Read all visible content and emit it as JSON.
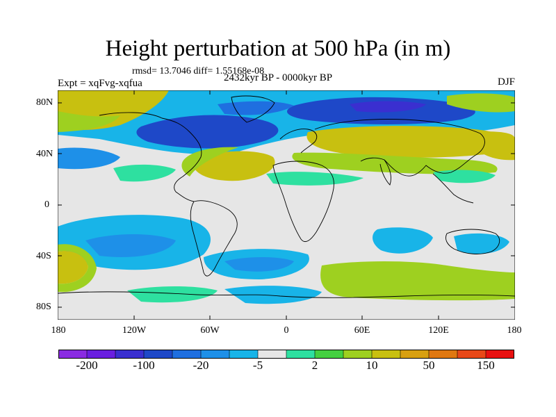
{
  "title": "Height perturbation at 500 hPa (in m)",
  "stat_line": "rmsd= 13.7046 diff= 1.55168e-08",
  "experiment": "Expt = xqFvg-xqfua",
  "period": "2432kyr BP - 0000kyr BP",
  "season": "DJF",
  "lat_labels": [
    "80N",
    "40N",
    "0",
    "40S",
    "80S"
  ],
  "lon_labels": [
    "180",
    "120W",
    "60W",
    "0",
    "60E",
    "120E",
    "180"
  ],
  "colorbar": {
    "colors": [
      "#8a2be2",
      "#6a1fe0",
      "#3a2fd0",
      "#1e48c8",
      "#1f6fe0",
      "#1e90e8",
      "#18b4e8",
      "#e6e6e6",
      "#2ee0a0",
      "#44d040",
      "#9ed020",
      "#c8c010",
      "#d8a010",
      "#e07810",
      "#e84818",
      "#e81010"
    ],
    "tick_labels": [
      "-200",
      "-100",
      "-20",
      "-5",
      "2",
      "10",
      "50",
      "150"
    ]
  },
  "colors": {
    "missing": "#e6e6e6",
    "coast": "#000000"
  }
}
